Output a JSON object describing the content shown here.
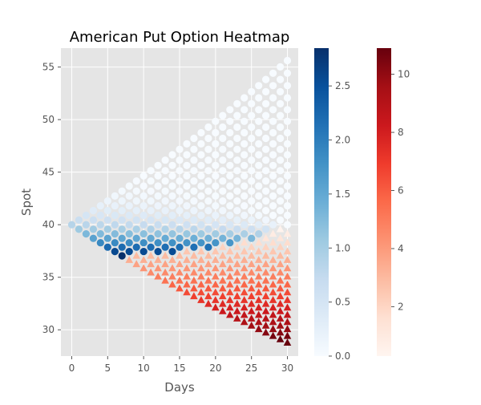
{
  "chart_data": {
    "type": "scatter",
    "title": "American Put Option Heatmap",
    "xlabel": "Days",
    "ylabel": "Spot",
    "xlim": [
      -1.5,
      31.5
    ],
    "ylim": [
      27.5,
      56.8
    ],
    "x_ticks": [
      0,
      5,
      10,
      15,
      20,
      25,
      30
    ],
    "y_ticks": [
      30,
      35,
      40,
      45,
      50,
      55
    ],
    "grid": true,
    "background": "#e5e5e5",
    "lattice": {
      "steps": 30,
      "spot0": 40,
      "up_factor": 1.01105
    },
    "marker_rule": "circles where the option value is the continuation value, triangles where early exercise is optimal",
    "series": [
      {
        "marker": "circle",
        "cmap": "Blues",
        "colorbar": {
          "min": 0.0,
          "max": 2.85,
          "ticks": [
            0.0,
            0.5,
            1.0,
            1.5,
            2.0,
            2.5
          ]
        }
      },
      {
        "marker": "triangle",
        "cmap": "Reds",
        "colorbar": {
          "min": 0.3,
          "max": 10.9,
          "ticks": [
            2,
            4,
            6,
            8,
            10
          ]
        }
      }
    ]
  }
}
